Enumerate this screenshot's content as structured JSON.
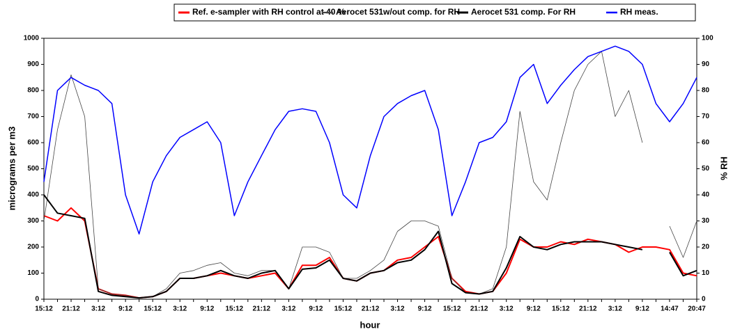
{
  "chart_data": {
    "type": "line",
    "ylabel": "micrograms per m3",
    "y2label": "% RH",
    "xlabel": "hour",
    "categories": [
      "15:12",
      null,
      "21:12",
      null,
      "3:12",
      null,
      "9:12",
      null,
      "15:12",
      null,
      "3:12",
      null,
      "9:12",
      null,
      "15:12",
      null,
      "21:12",
      null,
      "3:12",
      null,
      "9:12",
      null,
      "15:12",
      null,
      "21:12",
      null,
      "3:12",
      null,
      "9:12",
      null,
      "15:12",
      null,
      "21:12",
      null,
      "3:12",
      null,
      "9:12",
      null,
      "15:12",
      null,
      "21:12",
      null,
      "3:12",
      null,
      "9:12",
      null,
      "14:47",
      null,
      "20:47"
    ],
    "ylim": [
      0,
      1000
    ],
    "yticks": [
      0,
      100,
      200,
      300,
      400,
      500,
      600,
      700,
      800,
      900,
      1000
    ],
    "y2lim": [
      0,
      100
    ],
    "y2ticks": [
      0,
      10,
      20,
      30,
      40,
      50,
      60,
      70,
      80,
      90,
      100
    ],
    "series": [
      {
        "name": "Ref. e-sampler with RH control at 40 %",
        "color": "#ff0000",
        "width": 2,
        "values": [
          320,
          300,
          350,
          300,
          40,
          20,
          15,
          5,
          10,
          30,
          80,
          80,
          90,
          100,
          90,
          80,
          90,
          100,
          40,
          130,
          130,
          160,
          80,
          70,
          100,
          110,
          150,
          160,
          200,
          240,
          80,
          30,
          20,
          30,
          100,
          230,
          200,
          200,
          220,
          210,
          230,
          220,
          210,
          180,
          200,
          200,
          190,
          100,
          90
        ]
      },
      {
        "name": "Aerocet 531w/out comp. for RH",
        "color": "#444444",
        "width": 0.8,
        "values": [
          300,
          650,
          860,
          700,
          40,
          20,
          15,
          5,
          10,
          40,
          100,
          110,
          130,
          140,
          100,
          90,
          110,
          110,
          40,
          200,
          200,
          180,
          80,
          80,
          110,
          150,
          260,
          300,
          300,
          280,
          80,
          25,
          20,
          40,
          200,
          720,
          450,
          380,
          600,
          800,
          900,
          950,
          700,
          800,
          600,
          null,
          280,
          160,
          300
        ]
      },
      {
        "name": "Aerocet 531 comp. For RH",
        "color": "#000000",
        "width": 2,
        "values": [
          400,
          330,
          320,
          310,
          30,
          15,
          10,
          5,
          10,
          30,
          80,
          80,
          90,
          110,
          90,
          80,
          100,
          110,
          40,
          115,
          120,
          150,
          80,
          70,
          100,
          110,
          140,
          150,
          190,
          260,
          60,
          25,
          20,
          30,
          120,
          240,
          200,
          190,
          210,
          220,
          220,
          220,
          210,
          200,
          190,
          null,
          180,
          90,
          110
        ]
      },
      {
        "name": "RH meas.",
        "color": "#0000ff",
        "width": 1.5,
        "axis": "y2",
        "values": [
          45,
          80,
          85,
          82,
          80,
          75,
          40,
          25,
          45,
          55,
          62,
          65,
          68,
          60,
          32,
          45,
          55,
          65,
          72,
          73,
          72,
          60,
          40,
          35,
          55,
          70,
          75,
          78,
          80,
          65,
          32,
          45,
          60,
          62,
          68,
          85,
          90,
          75,
          82,
          88,
          93,
          95,
          97,
          95,
          90,
          75,
          68,
          75,
          85
        ]
      }
    ]
  }
}
